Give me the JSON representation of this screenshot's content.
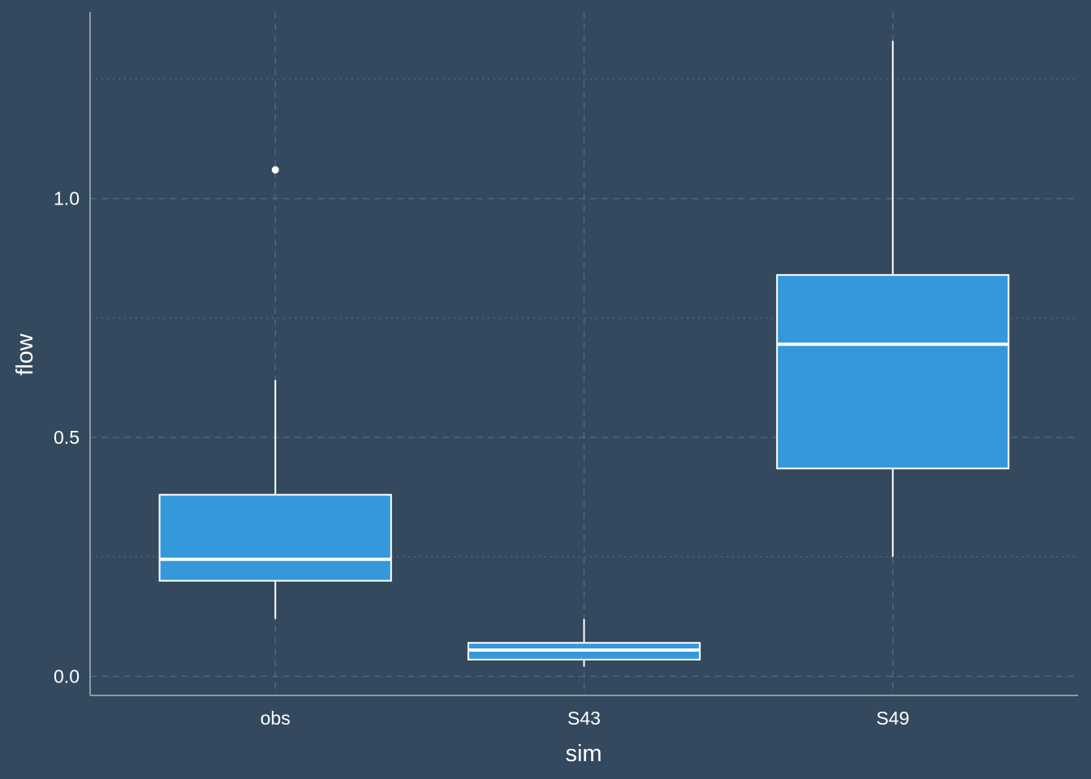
{
  "colors": {
    "background": "#34495e",
    "box_fill": "#3498db",
    "box_stroke": "#ffffff",
    "grid": "#4e6580",
    "axis_line": "#8c9aa6",
    "text": "#ffffff"
  },
  "chart_data": {
    "type": "boxplot",
    "title": "",
    "xlabel": "sim",
    "ylabel": "flow",
    "ylim": [
      -0.04,
      1.39
    ],
    "y_ticks": [
      0.0,
      0.5,
      1.0
    ],
    "y_tick_labels": [
      "0.0",
      "0.5",
      "1.0"
    ],
    "grid": true,
    "legend": "none",
    "categories": [
      "obs",
      "S43",
      "S49"
    ],
    "boxes": [
      {
        "category": "obs",
        "whisker_low": 0.12,
        "q1": 0.2,
        "median": 0.245,
        "q3": 0.38,
        "whisker_high": 0.62,
        "outliers": [
          1.06
        ]
      },
      {
        "category": "S43",
        "whisker_low": 0.02,
        "q1": 0.035,
        "median": 0.055,
        "q3": 0.07,
        "whisker_high": 0.12,
        "outliers": []
      },
      {
        "category": "S49",
        "whisker_low": 0.25,
        "q1": 0.435,
        "median": 0.695,
        "q3": 0.84,
        "whisker_high": 1.33,
        "outliers": []
      }
    ]
  }
}
